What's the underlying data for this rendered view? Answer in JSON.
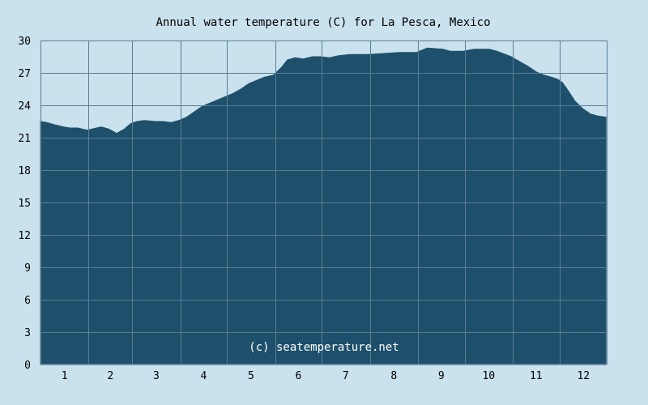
{
  "colors": {
    "background": "#c9e2ee",
    "area_fill": "#1e506b",
    "grid": "#5a7d96",
    "text": "#000000",
    "watermark": "#ffffff"
  },
  "chart_data": {
    "type": "area",
    "title": "Annual water temperature (C) for La Pesca, Mexico",
    "xlabel": "",
    "ylabel": "",
    "x_tick_labels": [
      "1",
      "2",
      "3",
      "4",
      "5",
      "6",
      "7",
      "8",
      "9",
      "10",
      "11",
      "12"
    ],
    "y_ticks": [
      0,
      3,
      6,
      9,
      12,
      15,
      18,
      21,
      24,
      27,
      30
    ],
    "ylim": [
      0,
      30
    ],
    "xlim": [
      1,
      366
    ],
    "grid": true,
    "watermark": "(c) seatemperature.net",
    "x_unit": "day of year",
    "series": [
      {
        "x": [
          1,
          5,
          10,
          16,
          20,
          25,
          31,
          34,
          40,
          45,
          50,
          55,
          59,
          63,
          68,
          75,
          80,
          85,
          90,
          95,
          100,
          105,
          110,
          115,
          120,
          125,
          130,
          135,
          140,
          145,
          151,
          156,
          160,
          165,
          170,
          176,
          181,
          187,
          193,
          200,
          212,
          222,
          232,
          243,
          250,
          260,
          265,
          273,
          280,
          290,
          295,
          304,
          310,
          315,
          320,
          325,
          330,
          334,
          337,
          340,
          345,
          350,
          355,
          360,
          365
        ],
        "values": [
          22.5,
          22.4,
          22.2,
          22.0,
          21.9,
          21.9,
          21.7,
          21.8,
          22.0,
          21.8,
          21.4,
          21.8,
          22.3,
          22.5,
          22.6,
          22.5,
          22.5,
          22.4,
          22.6,
          22.9,
          23.4,
          23.9,
          24.2,
          24.5,
          24.8,
          25.1,
          25.5,
          26.0,
          26.3,
          26.6,
          26.8,
          27.5,
          28.2,
          28.4,
          28.3,
          28.5,
          28.5,
          28.4,
          28.6,
          28.7,
          28.7,
          28.8,
          28.9,
          28.9,
          29.3,
          29.2,
          29.0,
          29.0,
          29.2,
          29.2,
          29.0,
          28.5,
          28.0,
          27.6,
          27.1,
          26.8,
          26.6,
          26.4,
          26.1,
          25.5,
          24.4,
          23.7,
          23.2,
          23.0,
          22.9
        ]
      }
    ]
  }
}
